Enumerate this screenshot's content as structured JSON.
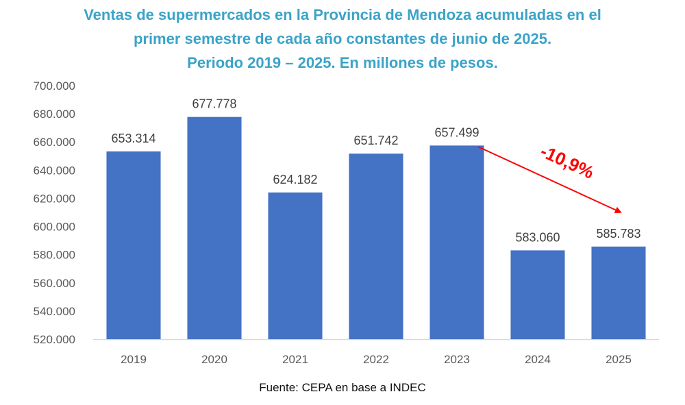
{
  "title_lines": [
    "Ventas de supermercados en la Provincia de Mendoza acumuladas en el",
    "primer semestre de cada año constantes de junio de 2025.",
    "Periodo 2019 – 2025. En millones de pesos."
  ],
  "source": "Fuente: CEPA en base a INDEC",
  "chart_data": {
    "type": "bar",
    "categories": [
      "2019",
      "2020",
      "2021",
      "2022",
      "2023",
      "2024",
      "2025"
    ],
    "values": [
      653314,
      677778,
      624182,
      651742,
      657499,
      583060,
      585783
    ],
    "value_labels": [
      "653.314",
      "677.778",
      "624.182",
      "651.742",
      "657.499",
      "583.060",
      "585.783"
    ],
    "ylim": [
      520000,
      700000
    ],
    "yticks": [
      520000,
      540000,
      560000,
      580000,
      600000,
      620000,
      640000,
      660000,
      680000,
      700000
    ],
    "ytick_labels": [
      "520.000",
      "540.000",
      "560.000",
      "580.000",
      "600.000",
      "620.000",
      "640.000",
      "660.000",
      "680.000",
      "700.000"
    ],
    "bar_color": "#4472c4",
    "grid": false,
    "annotation": {
      "text": "-10,9%",
      "color": "#ff0000",
      "from_category": "2023",
      "to_category": "2025"
    }
  }
}
